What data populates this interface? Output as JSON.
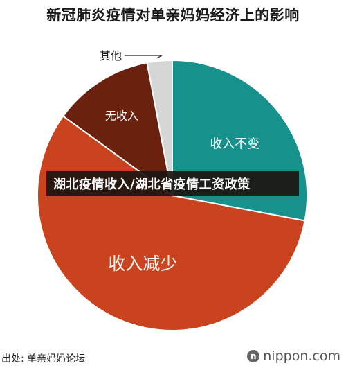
{
  "chart_data": {
    "type": "pie",
    "title": "新冠肺炎疫情对单亲妈妈经济上的影响",
    "slices": [
      {
        "label": "收入不变",
        "value": 28.0,
        "color": "#17918c"
      },
      {
        "label": "收入减少",
        "value": 57.0,
        "color": "#c9431e"
      },
      {
        "label": "无收入",
        "value": 12.0,
        "color": "#6a210e"
      },
      {
        "label": "其他",
        "value": 3.0,
        "color": "#d6d6d6"
      }
    ]
  },
  "banner": "湖北疫情收入/湖北省疫情工资政策",
  "source": "出处: 单亲妈妈论坛",
  "logo": {
    "text": "nippon.com",
    "mark": "n"
  }
}
